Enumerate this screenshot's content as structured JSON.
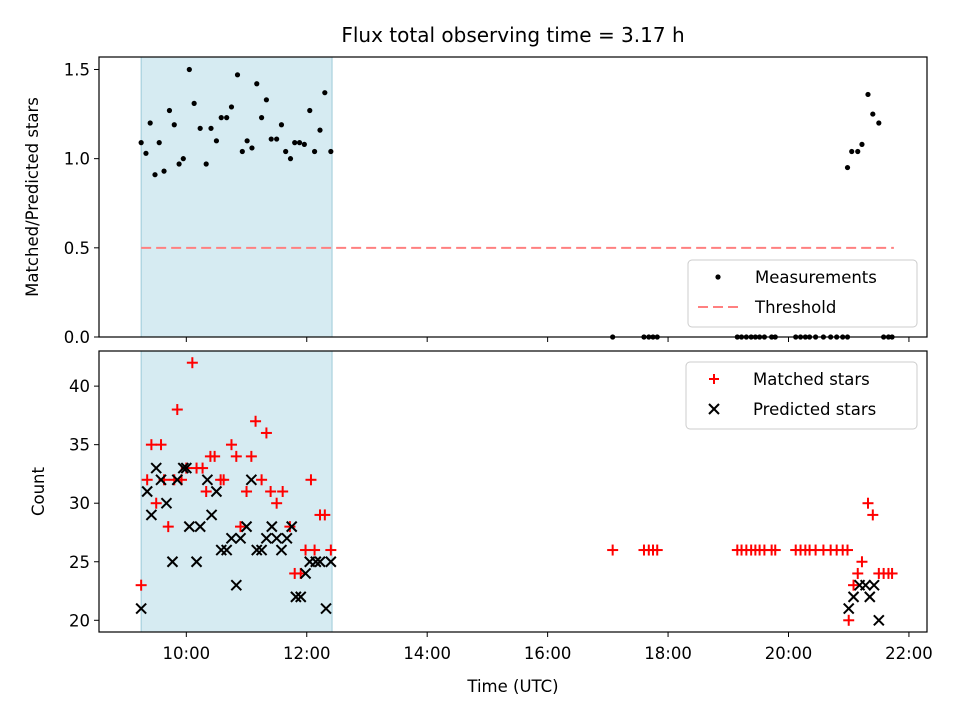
{
  "chart_data": [
    {
      "type": "scatter",
      "title": "Flux total observing time = 3.17 h",
      "xlabel": "",
      "ylabel": "Matched/Predicted stars",
      "xlim": [
        8.55,
        22.3
      ],
      "ylim": [
        0,
        1.5
      ],
      "ylim_plot": [
        0,
        1.57
      ],
      "yticks": [
        0.0,
        0.5,
        1.0,
        1.5
      ],
      "yticklabels": [
        "0.0",
        "0.5",
        "1.0",
        "1.5"
      ],
      "xticks": [
        10,
        12,
        14,
        16,
        18,
        20,
        22
      ],
      "shaded_span": [
        9.25,
        12.42
      ],
      "grid": false,
      "legend_position": "lower-right",
      "legend": [
        {
          "name": "Measurements",
          "marker": "dot",
          "color": "#000000"
        },
        {
          "name": "Threshold",
          "marker": "dashed-line",
          "color": "#ff8080"
        }
      ],
      "threshold": {
        "value": 0.5,
        "x_range": [
          9.25,
          21.75
        ]
      },
      "series": [
        {
          "name": "Measurements",
          "color": "#000000",
          "points": [
            [
              9.25,
              1.09
            ],
            [
              9.33,
              1.03
            ],
            [
              9.4,
              1.2
            ],
            [
              9.48,
              0.91
            ],
            [
              9.55,
              1.09
            ],
            [
              9.63,
              0.93
            ],
            [
              9.72,
              1.27
            ],
            [
              9.8,
              1.19
            ],
            [
              9.88,
              0.97
            ],
            [
              9.95,
              1.0
            ],
            [
              10.05,
              1.5
            ],
            [
              10.13,
              1.31
            ],
            [
              10.23,
              1.17
            ],
            [
              10.33,
              0.97
            ],
            [
              10.41,
              1.17
            ],
            [
              10.5,
              1.1
            ],
            [
              10.58,
              1.23
            ],
            [
              10.67,
              1.23
            ],
            [
              10.75,
              1.29
            ],
            [
              10.85,
              1.47
            ],
            [
              10.93,
              1.04
            ],
            [
              11.01,
              1.1
            ],
            [
              11.09,
              1.06
            ],
            [
              11.17,
              1.42
            ],
            [
              11.25,
              1.23
            ],
            [
              11.33,
              1.33
            ],
            [
              11.41,
              1.11
            ],
            [
              11.5,
              1.11
            ],
            [
              11.58,
              1.19
            ],
            [
              11.65,
              1.04
            ],
            [
              11.73,
              1.0
            ],
            [
              11.8,
              1.09
            ],
            [
              11.88,
              1.09
            ],
            [
              11.96,
              1.08
            ],
            [
              12.05,
              1.27
            ],
            [
              12.13,
              1.04
            ],
            [
              12.22,
              1.16
            ],
            [
              12.3,
              1.37
            ],
            [
              12.4,
              1.04
            ],
            [
              20.98,
              0.95
            ],
            [
              21.05,
              1.04
            ],
            [
              21.15,
              1.04
            ],
            [
              21.22,
              1.08
            ],
            [
              21.32,
              1.36
            ],
            [
              21.4,
              1.25
            ],
            [
              21.5,
              1.2
            ],
            [
              17.08,
              0
            ],
            [
              17.6,
              0
            ],
            [
              17.68,
              0
            ],
            [
              17.75,
              0
            ],
            [
              17.82,
              0
            ],
            [
              19.15,
              0
            ],
            [
              19.22,
              0
            ],
            [
              19.3,
              0
            ],
            [
              19.38,
              0
            ],
            [
              19.45,
              0
            ],
            [
              19.52,
              0
            ],
            [
              19.6,
              0
            ],
            [
              19.72,
              0
            ],
            [
              19.78,
              0
            ],
            [
              20.12,
              0
            ],
            [
              20.2,
              0
            ],
            [
              20.28,
              0
            ],
            [
              20.35,
              0
            ],
            [
              20.45,
              0
            ],
            [
              20.58,
              0
            ],
            [
              20.7,
              0
            ],
            [
              20.8,
              0
            ],
            [
              20.9,
              0
            ],
            [
              20.98,
              0
            ],
            [
              21.58,
              0
            ],
            [
              21.66,
              0
            ],
            [
              21.72,
              0
            ]
          ]
        }
      ]
    },
    {
      "type": "scatter",
      "title": "",
      "xlabel": "Time (UTC)",
      "ylabel": "Count",
      "xlim": [
        8.55,
        22.3
      ],
      "ylim": [
        19,
        43
      ],
      "yticks": [
        20,
        25,
        30,
        35,
        40
      ],
      "yticklabels": [
        "20",
        "25",
        "30",
        "35",
        "40"
      ],
      "xticks": [
        10,
        12,
        14,
        16,
        18,
        20,
        22
      ],
      "xticklabels": [
        "10:00",
        "12:00",
        "14:00",
        "16:00",
        "18:00",
        "20:00",
        "22:00"
      ],
      "shaded_span": [
        9.25,
        12.42
      ],
      "grid": false,
      "legend_position": "top-right",
      "legend": [
        {
          "name": "Matched stars",
          "marker": "plus",
          "color": "#ff0000"
        },
        {
          "name": "Predicted stars",
          "marker": "x",
          "color": "#000000"
        }
      ],
      "series": [
        {
          "name": "Matched stars",
          "marker": "plus",
          "color": "#ff0000",
          "points": [
            [
              9.25,
              23
            ],
            [
              9.35,
              32
            ],
            [
              9.42,
              35
            ],
            [
              9.5,
              30
            ],
            [
              9.58,
              35
            ],
            [
              9.63,
              32
            ],
            [
              9.7,
              28
            ],
            [
              9.8,
              32
            ],
            [
              9.85,
              38
            ],
            [
              9.92,
              32
            ],
            [
              10.0,
              33
            ],
            [
              10.1,
              42
            ],
            [
              10.17,
              33
            ],
            [
              10.27,
              33
            ],
            [
              10.33,
              31
            ],
            [
              10.4,
              34
            ],
            [
              10.47,
              34
            ],
            [
              10.57,
              32
            ],
            [
              10.62,
              32
            ],
            [
              10.75,
              35
            ],
            [
              10.83,
              34
            ],
            [
              10.9,
              28
            ],
            [
              11.0,
              31
            ],
            [
              11.08,
              34
            ],
            [
              11.15,
              37
            ],
            [
              11.25,
              32
            ],
            [
              11.33,
              36
            ],
            [
              11.4,
              31
            ],
            [
              11.5,
              30
            ],
            [
              11.6,
              31
            ],
            [
              11.72,
              28
            ],
            [
              11.8,
              24
            ],
            [
              11.9,
              24
            ],
            [
              11.98,
              26
            ],
            [
              12.07,
              32
            ],
            [
              12.13,
              26
            ],
            [
              12.22,
              29
            ],
            [
              12.3,
              29
            ],
            [
              12.4,
              26
            ],
            [
              17.08,
              26
            ],
            [
              17.6,
              26
            ],
            [
              17.68,
              26
            ],
            [
              17.75,
              26
            ],
            [
              17.82,
              26
            ],
            [
              19.15,
              26
            ],
            [
              19.22,
              26
            ],
            [
              19.3,
              26
            ],
            [
              19.38,
              26
            ],
            [
              19.45,
              26
            ],
            [
              19.52,
              26
            ],
            [
              19.6,
              26
            ],
            [
              19.72,
              26
            ],
            [
              19.78,
              26
            ],
            [
              20.12,
              26
            ],
            [
              20.2,
              26
            ],
            [
              20.28,
              26
            ],
            [
              20.35,
              26
            ],
            [
              20.45,
              26
            ],
            [
              20.58,
              26
            ],
            [
              20.7,
              26
            ],
            [
              20.8,
              26
            ],
            [
              20.9,
              26
            ],
            [
              20.98,
              26
            ],
            [
              21.0,
              20
            ],
            [
              21.08,
              23
            ],
            [
              21.15,
              24
            ],
            [
              21.22,
              25
            ],
            [
              21.32,
              30
            ],
            [
              21.4,
              29
            ],
            [
              21.5,
              24
            ],
            [
              21.58,
              24
            ],
            [
              21.66,
              24
            ],
            [
              21.72,
              24
            ]
          ]
        },
        {
          "name": "Predicted stars",
          "marker": "x",
          "color": "#000000",
          "points": [
            [
              9.25,
              21
            ],
            [
              9.35,
              31
            ],
            [
              9.42,
              29
            ],
            [
              9.5,
              33
            ],
            [
              9.58,
              32
            ],
            [
              9.67,
              30
            ],
            [
              9.77,
              25
            ],
            [
              9.85,
              32
            ],
            [
              9.95,
              33
            ],
            [
              10.0,
              33
            ],
            [
              10.05,
              28
            ],
            [
              10.17,
              25
            ],
            [
              10.23,
              28
            ],
            [
              10.35,
              32
            ],
            [
              10.42,
              29
            ],
            [
              10.5,
              31
            ],
            [
              10.58,
              26
            ],
            [
              10.67,
              26
            ],
            [
              10.75,
              27
            ],
            [
              10.83,
              23
            ],
            [
              10.9,
              27
            ],
            [
              11.0,
              28
            ],
            [
              11.08,
              32
            ],
            [
              11.17,
              26
            ],
            [
              11.25,
              26
            ],
            [
              11.33,
              27
            ],
            [
              11.42,
              28
            ],
            [
              11.5,
              27
            ],
            [
              11.58,
              26
            ],
            [
              11.67,
              27
            ],
            [
              11.75,
              28
            ],
            [
              11.82,
              22
            ],
            [
              11.9,
              22
            ],
            [
              11.98,
              24
            ],
            [
              12.05,
              25
            ],
            [
              12.15,
              25
            ],
            [
              12.22,
              25
            ],
            [
              12.32,
              21
            ],
            [
              12.4,
              25
            ],
            [
              21.0,
              21
            ],
            [
              21.08,
              22
            ],
            [
              21.18,
              23
            ],
            [
              21.28,
              23
            ],
            [
              21.35,
              22
            ],
            [
              21.42,
              23
            ],
            [
              21.5,
              20
            ]
          ]
        }
      ]
    }
  ]
}
